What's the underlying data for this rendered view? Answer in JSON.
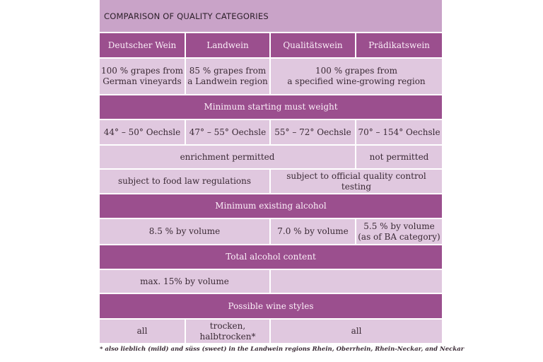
{
  "title": "COMPARISON OF QUALITY CATEGORIES",
  "columns": [
    "Deutscher Wein",
    "Landwein",
    "Qualitätswein",
    "Prädikatswein"
  ],
  "origin": [
    "100 % grapes from\nGerman vineyards",
    "85 % grapes from\na Landwein region",
    "100 % grapes from\na specified wine-growing region"
  ],
  "must_weight": {
    "heading": "Minimum starting must weight",
    "values": [
      "44° – 50° Oechsle",
      "47° – 55° Oechsle",
      "55° – 72° Oechsle",
      "70° – 154° Oechsle"
    ]
  },
  "enrichment": [
    "enrichment permitted",
    "not permitted"
  ],
  "regulation": [
    "subject to food law regulations",
    "subject to official quality control testing"
  ],
  "min_alcohol": {
    "heading": "Minimum existing alcohol",
    "values": [
      "8.5 % by volume",
      "7.0 % by volume",
      "5.5 % by volume\n(as of BA category)"
    ]
  },
  "total_alcohol": {
    "heading": "Total alcohol content",
    "values": [
      "max. 15% by volume",
      ""
    ]
  },
  "styles": {
    "heading": "Possible wine styles",
    "values": [
      "all",
      "trocken, halbtrocken*",
      "all"
    ]
  },
  "footnote": "* also lieblich (mild) and süss (sweet) in the Landwein regions Rhein, Oberrhein, Rhein-Neckar, and Neckar",
  "colors": {
    "header_band": "#9b4f8e",
    "title_band": "#c9a3c8",
    "cell": "#e0c8df"
  }
}
